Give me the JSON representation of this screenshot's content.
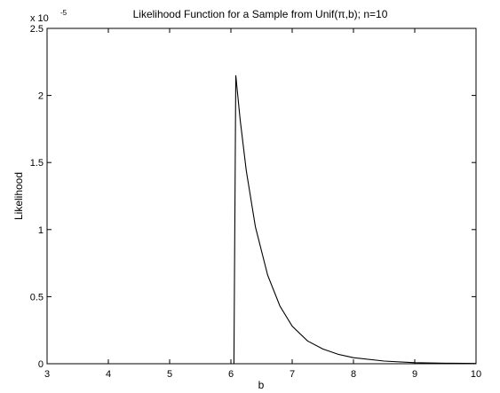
{
  "chart_data": {
    "type": "line",
    "title": "Likelihood Function for a Sample from Unif(π,b); n=10",
    "xlabel": "b",
    "ylabel": "Likelihood",
    "y_multiplier_label": "x 10",
    "y_multiplier_exponent": "-5",
    "xlim": [
      3,
      10
    ],
    "ylim": [
      0,
      2.5
    ],
    "xticks": [
      3,
      4,
      5,
      6,
      7,
      8,
      9,
      10
    ],
    "xtick_labels": [
      "3",
      "4",
      "5",
      "6",
      "7",
      "8",
      "9",
      "10"
    ],
    "yticks": [
      0,
      0.5,
      1,
      1.5,
      2,
      2.5
    ],
    "ytick_labels": [
      "0",
      "0.5",
      "1",
      "1.5",
      "2",
      "2.5"
    ],
    "grid": false,
    "line_color": "#000000",
    "series": [
      {
        "x": [
          6.02,
          6.05,
          6.08,
          6.15,
          6.25,
          6.4,
          6.6,
          6.8,
          7.0,
          7.25,
          7.5,
          7.75,
          8.0,
          8.5,
          9.0,
          9.5,
          10.0
        ],
        "y": [
          0,
          0,
          2.15,
          1.82,
          1.44,
          1.02,
          0.66,
          0.43,
          0.28,
          0.17,
          0.11,
          0.07,
          0.045,
          0.02,
          0.008,
          0.004,
          0.002
        ]
      }
    ]
  }
}
